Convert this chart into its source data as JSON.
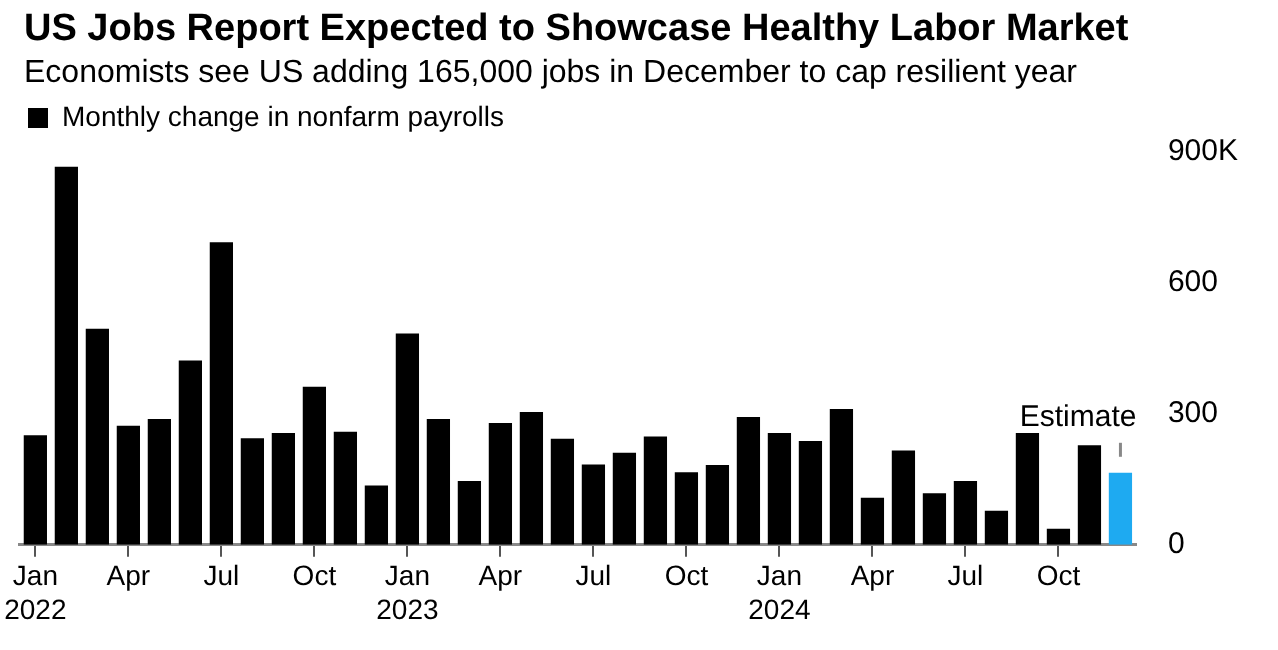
{
  "chart_data": {
    "type": "bar",
    "title": "US Jobs Report Expected to Showcase Healthy Labor Market",
    "subtitle": "Economists see US adding 165,000 jobs in December to cap resilient year",
    "categories": [
      "Jan 2022",
      null,
      null,
      "Apr",
      null,
      null,
      "Jul",
      null,
      null,
      "Oct",
      null,
      null,
      "Jan 2023",
      null,
      null,
      "Apr",
      null,
      null,
      "Jul",
      null,
      null,
      "Oct",
      null,
      null,
      "Jan 2024",
      null,
      null,
      "Apr",
      null,
      null,
      "Jul",
      null,
      null,
      "Oct",
      null,
      null
    ],
    "series": [
      {
        "name": "Monthly change in nonfarm payrolls",
        "color": "#000000",
        "colors": [
          "#000000",
          "#000000",
          "#000000",
          "#000000",
          "#000000",
          "#000000",
          "#000000",
          "#000000",
          "#000000",
          "#000000",
          "#000000",
          "#000000",
          "#000000",
          "#000000",
          "#000000",
          "#000000",
          "#000000",
          "#000000",
          "#000000",
          "#000000",
          "#000000",
          "#000000",
          "#000000",
          "#000000",
          "#000000",
          "#000000",
          "#000000",
          "#000000",
          "#000000",
          "#000000",
          "#000000",
          "#000000",
          "#000000",
          "#000000",
          "#000000",
          "#1eaaf1"
        ],
        "values": [
          251,
          866,
          495,
          273,
          288,
          422,
          693,
          244,
          256,
          362,
          259,
          136,
          484,
          288,
          146,
          279,
          304,
          243,
          184,
          211,
          248,
          166,
          183,
          293,
          256,
          238,
          311,
          108,
          216,
          118,
          146,
          78,
          256,
          37,
          228,
          165
        ]
      }
    ],
    "annotations": [
      "Estimate"
    ],
    "ylim": [
      0,
      900
    ],
    "yticks": [
      0,
      300,
      600,
      {
        "value": 900,
        "label": "900K"
      }
    ],
    "grid": false,
    "legend": "top left"
  }
}
